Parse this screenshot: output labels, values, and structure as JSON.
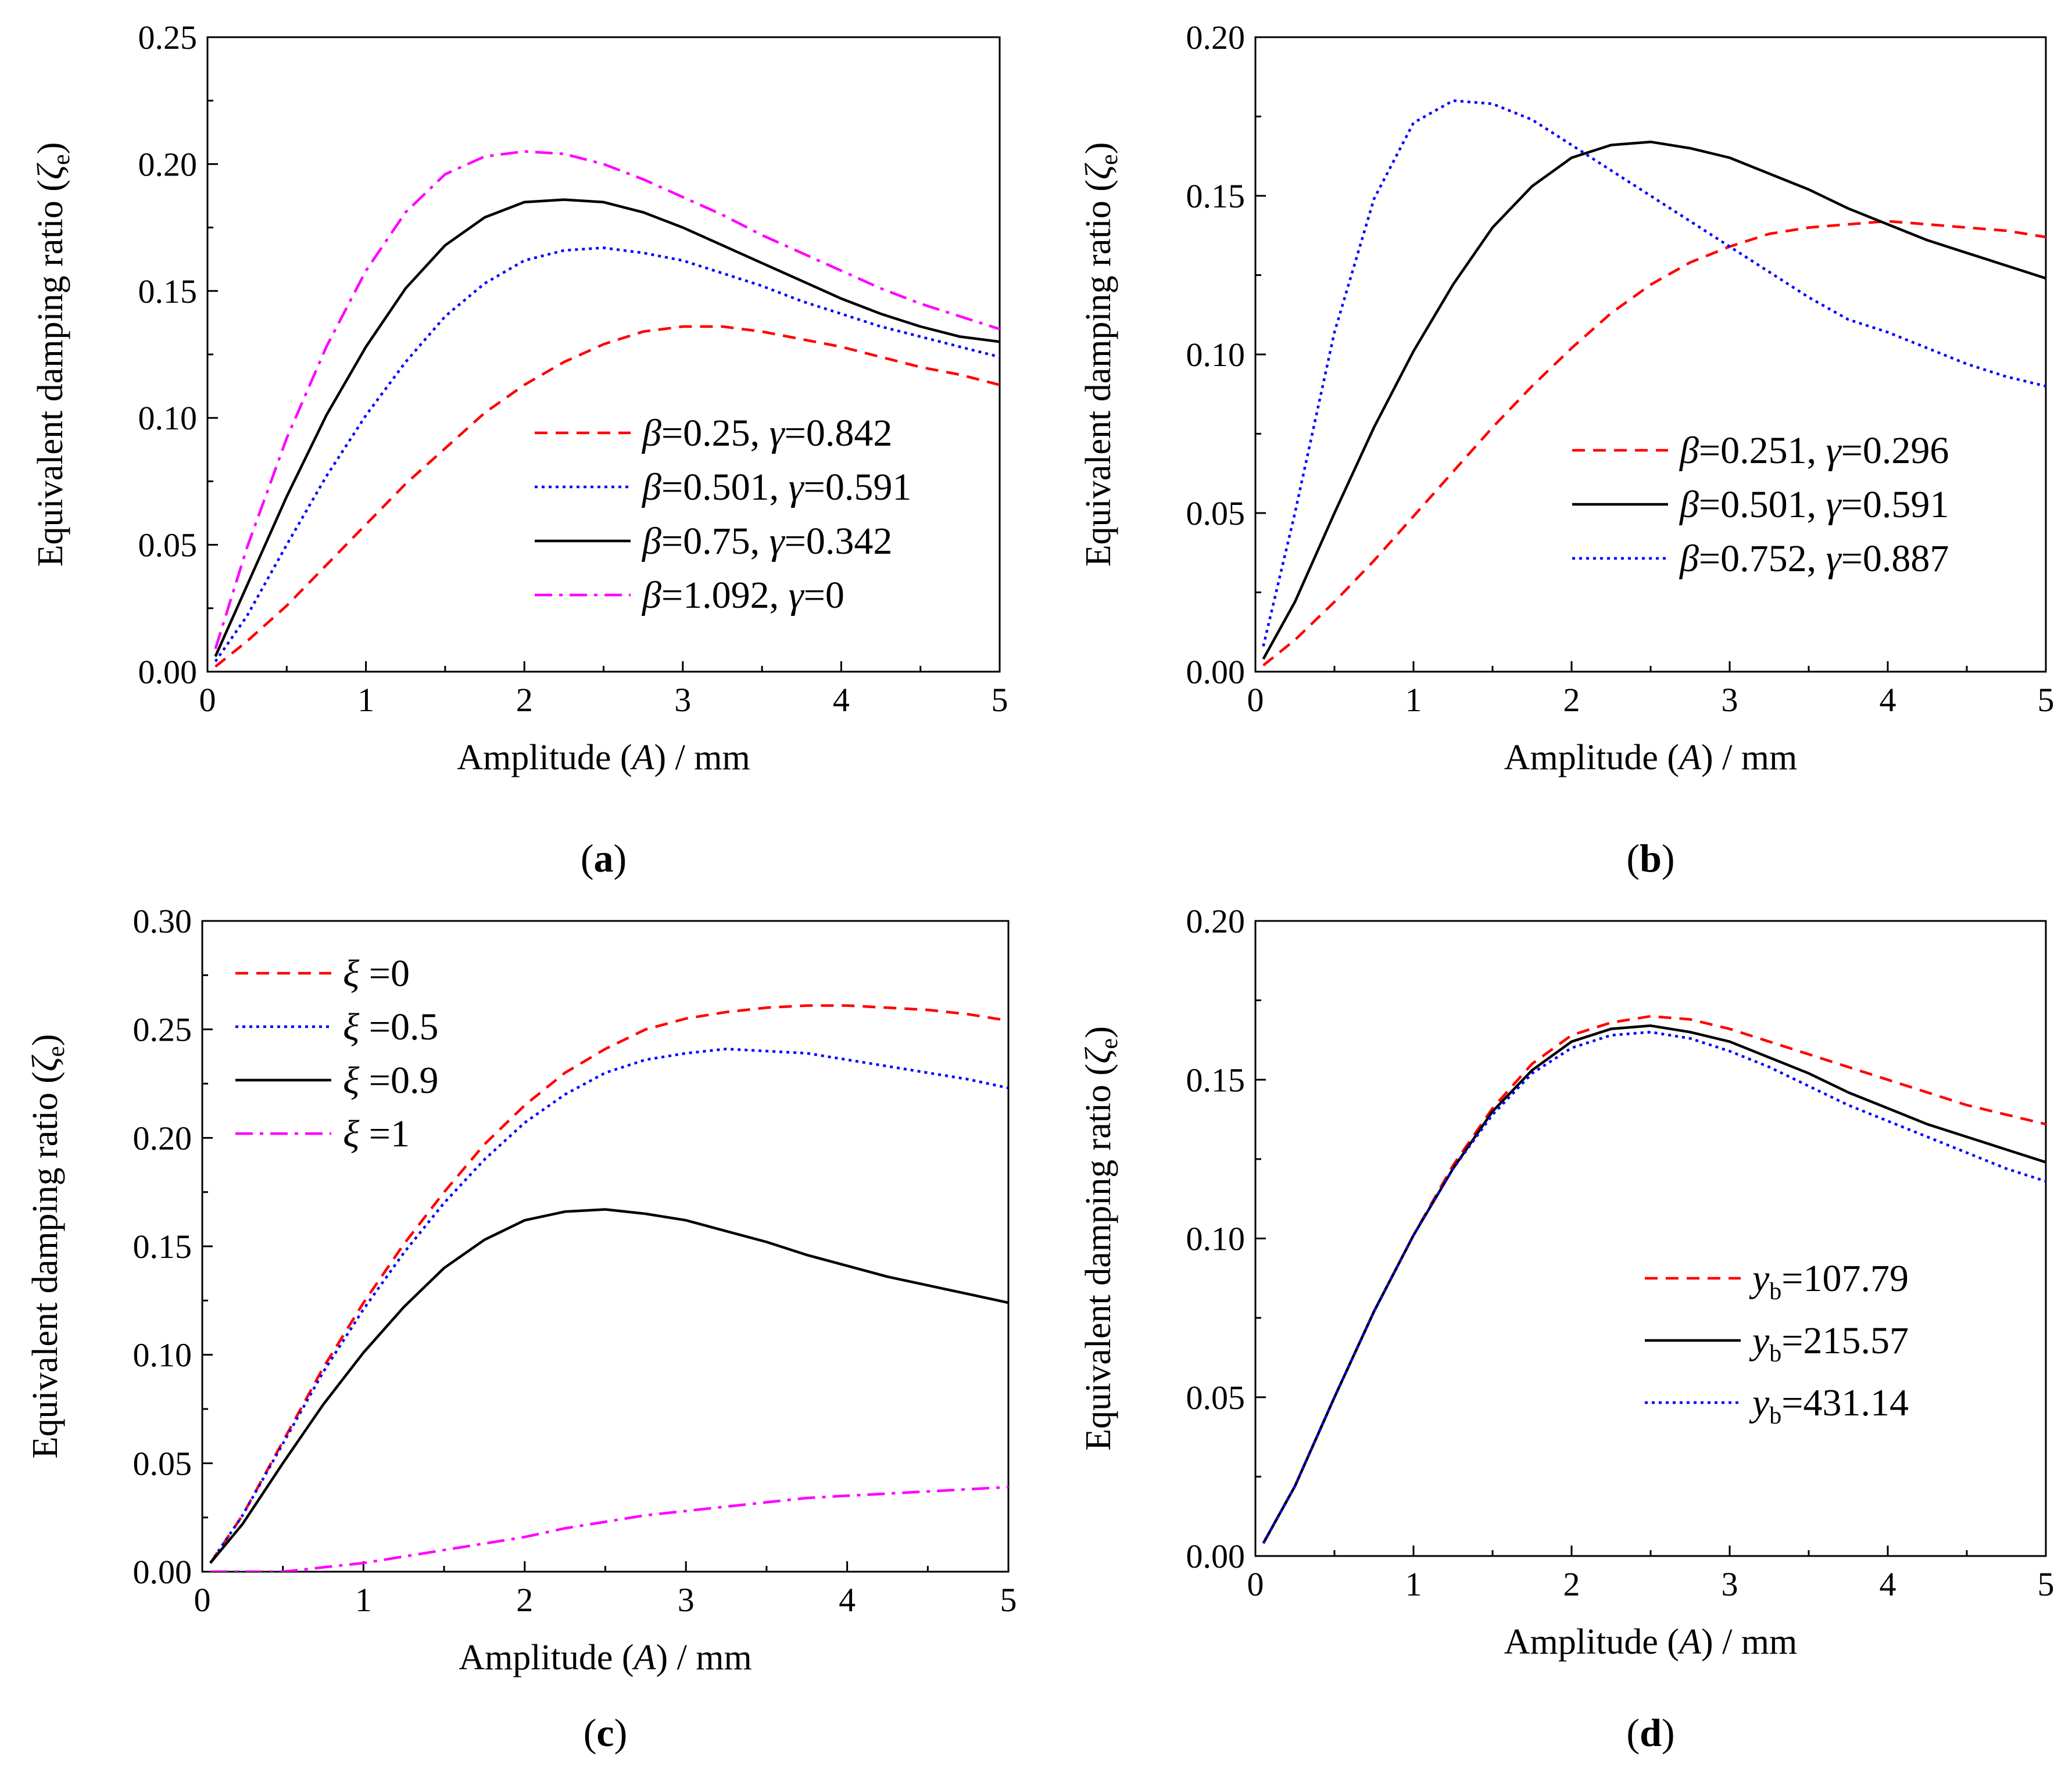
{
  "figure": {
    "panels": [
      "a",
      "b",
      "c",
      "d"
    ]
  },
  "chart_data": [
    {
      "id": "a",
      "type": "line",
      "panel_label": "a",
      "xlabel": {
        "pre": "Amplitude (",
        "var": "A",
        "post": ") / mm"
      },
      "ylabel": {
        "pre": "Equivalent damping ratio (",
        "var": "ζ",
        "sub": "e",
        "post": ")"
      },
      "xlim": [
        0,
        5
      ],
      "ylim": [
        0,
        0.25
      ],
      "xticks": [
        "0",
        "1",
        "2",
        "3",
        "4",
        "5"
      ],
      "yticks": [
        "0.00",
        "0.05",
        "0.10",
        "0.15",
        "0.20",
        "0.25"
      ],
      "legend_position": "lower-right",
      "series": [
        {
          "name": "β=0.25, γ=0.842",
          "legend": [
            {
              "t": "β",
              "i": true
            },
            {
              "t": "=0.25, "
            },
            {
              "t": "γ",
              "i": true
            },
            {
              "t": "=0.842"
            }
          ],
          "color": "#ff0000",
          "dash": "dash",
          "x": [
            0.05,
            0.25,
            0.5,
            0.75,
            1,
            1.25,
            1.5,
            1.75,
            2,
            2.25,
            2.5,
            2.75,
            3,
            3.25,
            3.5,
            3.75,
            4,
            4.25,
            4.5,
            4.75,
            5
          ],
          "y": [
            0.002,
            0.012,
            0.026,
            0.042,
            0.058,
            0.074,
            0.088,
            0.102,
            0.113,
            0.122,
            0.129,
            0.134,
            0.136,
            0.136,
            0.134,
            0.131,
            0.128,
            0.124,
            0.12,
            0.117,
            0.113
          ]
        },
        {
          "name": "β=0.501, γ=0.591",
          "legend": [
            {
              "t": "β",
              "i": true
            },
            {
              "t": "=0.501, "
            },
            {
              "t": "γ",
              "i": true
            },
            {
              "t": "=0.591"
            }
          ],
          "color": "#0000ff",
          "dash": "dot",
          "x": [
            0.05,
            0.25,
            0.5,
            0.75,
            1,
            1.25,
            1.5,
            1.75,
            2,
            2.25,
            2.5,
            2.75,
            3,
            3.25,
            3.5,
            3.75,
            4,
            4.25,
            4.5,
            4.75,
            5
          ],
          "y": [
            0.004,
            0.022,
            0.05,
            0.077,
            0.101,
            0.122,
            0.14,
            0.153,
            0.162,
            0.166,
            0.167,
            0.165,
            0.162,
            0.157,
            0.152,
            0.146,
            0.141,
            0.136,
            0.132,
            0.128,
            0.124
          ]
        },
        {
          "name": "β=0.75, γ=0.342",
          "legend": [
            {
              "t": "β",
              "i": true
            },
            {
              "t": "=0.75, "
            },
            {
              "t": "γ",
              "i": true
            },
            {
              "t": "=0.342"
            }
          ],
          "color": "#000000",
          "dash": "solid",
          "x": [
            0.05,
            0.25,
            0.5,
            0.75,
            1,
            1.25,
            1.5,
            1.75,
            2,
            2.25,
            2.5,
            2.75,
            3,
            3.25,
            3.5,
            3.75,
            4,
            4.25,
            4.5,
            4.75,
            5
          ],
          "y": [
            0.006,
            0.034,
            0.069,
            0.101,
            0.128,
            0.151,
            0.168,
            0.179,
            0.185,
            0.186,
            0.185,
            0.181,
            0.175,
            0.168,
            0.161,
            0.154,
            0.147,
            0.141,
            0.136,
            0.132,
            0.13
          ]
        },
        {
          "name": "β=1.092, γ=0",
          "legend": [
            {
              "t": "β",
              "i": true
            },
            {
              "t": "=1.092, "
            },
            {
              "t": "γ",
              "i": true
            },
            {
              "t": "=0"
            }
          ],
          "color": "#ff00ff",
          "dash": "dashdot",
          "x": [
            0.05,
            0.25,
            0.5,
            0.75,
            1,
            1.25,
            1.5,
            1.75,
            2,
            2.25,
            2.5,
            2.75,
            3,
            3.25,
            3.5,
            3.75,
            4,
            4.25,
            4.5,
            4.75,
            5
          ],
          "y": [
            0.009,
            0.049,
            0.092,
            0.128,
            0.158,
            0.181,
            0.196,
            0.203,
            0.205,
            0.204,
            0.2,
            0.194,
            0.187,
            0.18,
            0.172,
            0.165,
            0.158,
            0.151,
            0.145,
            0.14,
            0.135
          ]
        }
      ]
    },
    {
      "id": "b",
      "type": "line",
      "panel_label": "b",
      "xlabel": {
        "pre": "Amplitude (",
        "var": "A",
        "post": ") / mm"
      },
      "ylabel": {
        "pre": "Equivalent damping ratio (",
        "var": "ζ",
        "sub": "e",
        "post": ")"
      },
      "xlim": [
        0,
        5
      ],
      "ylim": [
        0,
        0.2
      ],
      "xticks": [
        "0",
        "1",
        "2",
        "3",
        "4",
        "5"
      ],
      "yticks": [
        "0.00",
        "0.05",
        "0.10",
        "0.15",
        "0.20"
      ],
      "legend_position": "lower-right",
      "series": [
        {
          "name": "β=0.251, γ=0.296",
          "legend": [
            {
              "t": "β",
              "i": true
            },
            {
              "t": "=0.251, "
            },
            {
              "t": "γ",
              "i": true
            },
            {
              "t": "=0.296"
            }
          ],
          "color": "#ff0000",
          "dash": "dash",
          "x": [
            0.05,
            0.25,
            0.5,
            0.75,
            1,
            1.25,
            1.5,
            1.75,
            2,
            2.25,
            2.5,
            2.75,
            3,
            3.25,
            3.5,
            3.75,
            4,
            4.25,
            4.5,
            4.75,
            5
          ],
          "y": [
            0.002,
            0.01,
            0.022,
            0.035,
            0.049,
            0.063,
            0.077,
            0.09,
            0.102,
            0.113,
            0.122,
            0.129,
            0.134,
            0.138,
            0.14,
            0.141,
            0.142,
            0.141,
            0.14,
            0.139,
            0.137
          ]
        },
        {
          "name": "β=0.501, γ=0.591",
          "legend": [
            {
              "t": "β",
              "i": true
            },
            {
              "t": "=0.501, "
            },
            {
              "t": "γ",
              "i": true
            },
            {
              "t": "=0.591"
            }
          ],
          "color": "#000000",
          "dash": "solid",
          "x": [
            0.05,
            0.25,
            0.5,
            0.75,
            1,
            1.25,
            1.5,
            1.75,
            2,
            2.25,
            2.5,
            2.75,
            3,
            3.25,
            3.5,
            3.75,
            4,
            4.25,
            4.5,
            4.75,
            5
          ],
          "y": [
            0.004,
            0.022,
            0.05,
            0.077,
            0.101,
            0.122,
            0.14,
            0.153,
            0.162,
            0.166,
            0.167,
            0.165,
            0.162,
            0.157,
            0.152,
            0.146,
            0.141,
            0.136,
            0.132,
            0.128,
            0.124
          ]
        },
        {
          "name": "β=0.752, γ=0.887",
          "legend": [
            {
              "t": "β",
              "i": true
            },
            {
              "t": "=0.752, "
            },
            {
              "t": "γ",
              "i": true
            },
            {
              "t": "=0.887"
            }
          ],
          "color": "#0000ff",
          "dash": "dot",
          "x": [
            0.05,
            0.25,
            0.5,
            0.75,
            1,
            1.25,
            1.5,
            1.75,
            2,
            2.25,
            2.5,
            2.75,
            3,
            3.25,
            3.5,
            3.75,
            4,
            4.25,
            4.5,
            4.75,
            5
          ],
          "y": [
            0.008,
            0.05,
            0.107,
            0.149,
            0.173,
            0.18,
            0.179,
            0.174,
            0.166,
            0.158,
            0.15,
            0.142,
            0.134,
            0.126,
            0.118,
            0.111,
            0.107,
            0.102,
            0.097,
            0.093,
            0.09
          ]
        }
      ]
    },
    {
      "id": "c",
      "type": "line",
      "panel_label": "c",
      "xlabel": {
        "pre": "Amplitude (",
        "var": "A",
        "post": ") / mm"
      },
      "ylabel": {
        "pre": "Equivalent damping ratio (",
        "var": "ζ",
        "sub": "e",
        "post": ")"
      },
      "xlim": [
        0,
        5
      ],
      "ylim": [
        0,
        0.3
      ],
      "xticks": [
        "0",
        "1",
        "2",
        "3",
        "4",
        "5"
      ],
      "yticks": [
        "0.00",
        "0.05",
        "0.10",
        "0.15",
        "0.20",
        "0.25",
        "0.30"
      ],
      "legend_position": "top-left",
      "series": [
        {
          "name": "ξ =0",
          "legend": [
            {
              "t": "ξ",
              "i": true
            },
            {
              "t": " =0"
            }
          ],
          "color": "#ff0000",
          "dash": "dash",
          "x": [
            0.05,
            0.25,
            0.5,
            0.75,
            1,
            1.25,
            1.5,
            1.75,
            2,
            2.25,
            2.5,
            2.75,
            3,
            3.25,
            3.5,
            3.75,
            4,
            4.25,
            4.5,
            4.75,
            5
          ],
          "y": [
            0.004,
            0.026,
            0.06,
            0.094,
            0.124,
            0.151,
            0.175,
            0.197,
            0.215,
            0.23,
            0.241,
            0.25,
            0.255,
            0.258,
            0.26,
            0.261,
            0.261,
            0.26,
            0.259,
            0.257,
            0.254
          ]
        },
        {
          "name": "ξ =0.5",
          "legend": [
            {
              "t": "ξ",
              "i": true
            },
            {
              "t": " =0.5"
            }
          ],
          "color": "#0000ff",
          "dash": "dot",
          "x": [
            0.05,
            0.25,
            0.5,
            0.75,
            1,
            1.25,
            1.5,
            1.75,
            2,
            2.25,
            2.5,
            2.75,
            3,
            3.25,
            3.5,
            3.75,
            4,
            4.25,
            4.5,
            4.75,
            5
          ],
          "y": [
            0.004,
            0.026,
            0.059,
            0.092,
            0.121,
            0.147,
            0.17,
            0.19,
            0.207,
            0.22,
            0.23,
            0.236,
            0.239,
            0.241,
            0.24,
            0.239,
            0.236,
            0.233,
            0.23,
            0.227,
            0.223
          ]
        },
        {
          "name": "ξ =0.9",
          "legend": [
            {
              "t": "ξ",
              "i": true
            },
            {
              "t": " =0.9"
            }
          ],
          "color": "#000000",
          "dash": "solid",
          "x": [
            0.05,
            0.25,
            0.5,
            0.75,
            1,
            1.25,
            1.5,
            1.75,
            2,
            2.25,
            2.5,
            2.75,
            3,
            3.25,
            3.5,
            3.75,
            4,
            4.25,
            4.5,
            4.75,
            5
          ],
          "y": [
            0.004,
            0.022,
            0.05,
            0.077,
            0.101,
            0.122,
            0.14,
            0.153,
            0.162,
            0.166,
            0.167,
            0.165,
            0.162,
            0.157,
            0.152,
            0.146,
            0.141,
            0.136,
            0.132,
            0.128,
            0.124
          ]
        },
        {
          "name": "ξ =1",
          "legend": [
            {
              "t": "ξ",
              "i": true
            },
            {
              "t": " =1"
            }
          ],
          "color": "#ff00ff",
          "dash": "dashdot",
          "x": [
            0.05,
            0.25,
            0.5,
            0.75,
            1,
            1.25,
            1.5,
            1.75,
            2,
            2.25,
            2.5,
            2.75,
            3,
            3.25,
            3.5,
            3.75,
            4,
            4.25,
            4.5,
            4.75,
            5
          ],
          "y": [
            0.0,
            0.0,
            0.0,
            0.002,
            0.004,
            0.007,
            0.01,
            0.013,
            0.016,
            0.02,
            0.023,
            0.026,
            0.028,
            0.03,
            0.032,
            0.034,
            0.035,
            0.036,
            0.037,
            0.038,
            0.039
          ]
        }
      ]
    },
    {
      "id": "d",
      "type": "line",
      "panel_label": "d",
      "xlabel": {
        "pre": "Amplitude (",
        "var": "A",
        "post": ") / mm"
      },
      "ylabel": {
        "pre": "Equivalent damping ratio (",
        "var": "ζ",
        "sub": "e",
        "post": ")"
      },
      "xlim": [
        0,
        5
      ],
      "ylim": [
        0,
        0.2
      ],
      "xticks": [
        "0",
        "1",
        "2",
        "3",
        "4",
        "5"
      ],
      "yticks": [
        "0.00",
        "0.05",
        "0.10",
        "0.15",
        "0.20"
      ],
      "legend_position": "lower-right",
      "series": [
        {
          "name": "yb=107.79",
          "legend": [
            {
              "t": "y",
              "i": true
            },
            {
              "t": "b",
              "s": true
            },
            {
              "t": "=107.79"
            }
          ],
          "color": "#ff0000",
          "dash": "dash",
          "x": [
            0.05,
            0.25,
            0.5,
            0.75,
            1,
            1.25,
            1.5,
            1.75,
            2,
            2.25,
            2.5,
            2.75,
            3,
            3.25,
            3.5,
            3.75,
            4,
            4.25,
            4.5,
            4.75,
            5
          ],
          "y": [
            0.004,
            0.022,
            0.05,
            0.077,
            0.101,
            0.123,
            0.141,
            0.155,
            0.164,
            0.168,
            0.17,
            0.169,
            0.166,
            0.162,
            0.158,
            0.154,
            0.15,
            0.146,
            0.142,
            0.139,
            0.136
          ]
        },
        {
          "name": "yb=215.57",
          "legend": [
            {
              "t": "y",
              "i": true
            },
            {
              "t": "b",
              "s": true
            },
            {
              "t": "=215.57"
            }
          ],
          "color": "#000000",
          "dash": "solid",
          "x": [
            0.05,
            0.25,
            0.5,
            0.75,
            1,
            1.25,
            1.5,
            1.75,
            2,
            2.25,
            2.5,
            2.75,
            3,
            3.25,
            3.5,
            3.75,
            4,
            4.25,
            4.5,
            4.75,
            5
          ],
          "y": [
            0.004,
            0.022,
            0.05,
            0.077,
            0.101,
            0.122,
            0.14,
            0.153,
            0.162,
            0.166,
            0.167,
            0.165,
            0.162,
            0.157,
            0.152,
            0.146,
            0.141,
            0.136,
            0.132,
            0.128,
            0.124
          ]
        },
        {
          "name": "yb=431.14",
          "legend": [
            {
              "t": "y",
              "i": true
            },
            {
              "t": "b",
              "s": true
            },
            {
              "t": "=431.14"
            }
          ],
          "color": "#0000ff",
          "dash": "dot",
          "x": [
            0.05,
            0.25,
            0.5,
            0.75,
            1,
            1.25,
            1.5,
            1.75,
            2,
            2.25,
            2.5,
            2.75,
            3,
            3.25,
            3.5,
            3.75,
            4,
            4.25,
            4.5,
            4.75,
            5
          ],
          "y": [
            0.004,
            0.022,
            0.05,
            0.077,
            0.101,
            0.122,
            0.139,
            0.152,
            0.16,
            0.164,
            0.165,
            0.163,
            0.159,
            0.154,
            0.148,
            0.142,
            0.137,
            0.132,
            0.127,
            0.122,
            0.118
          ]
        }
      ]
    }
  ]
}
